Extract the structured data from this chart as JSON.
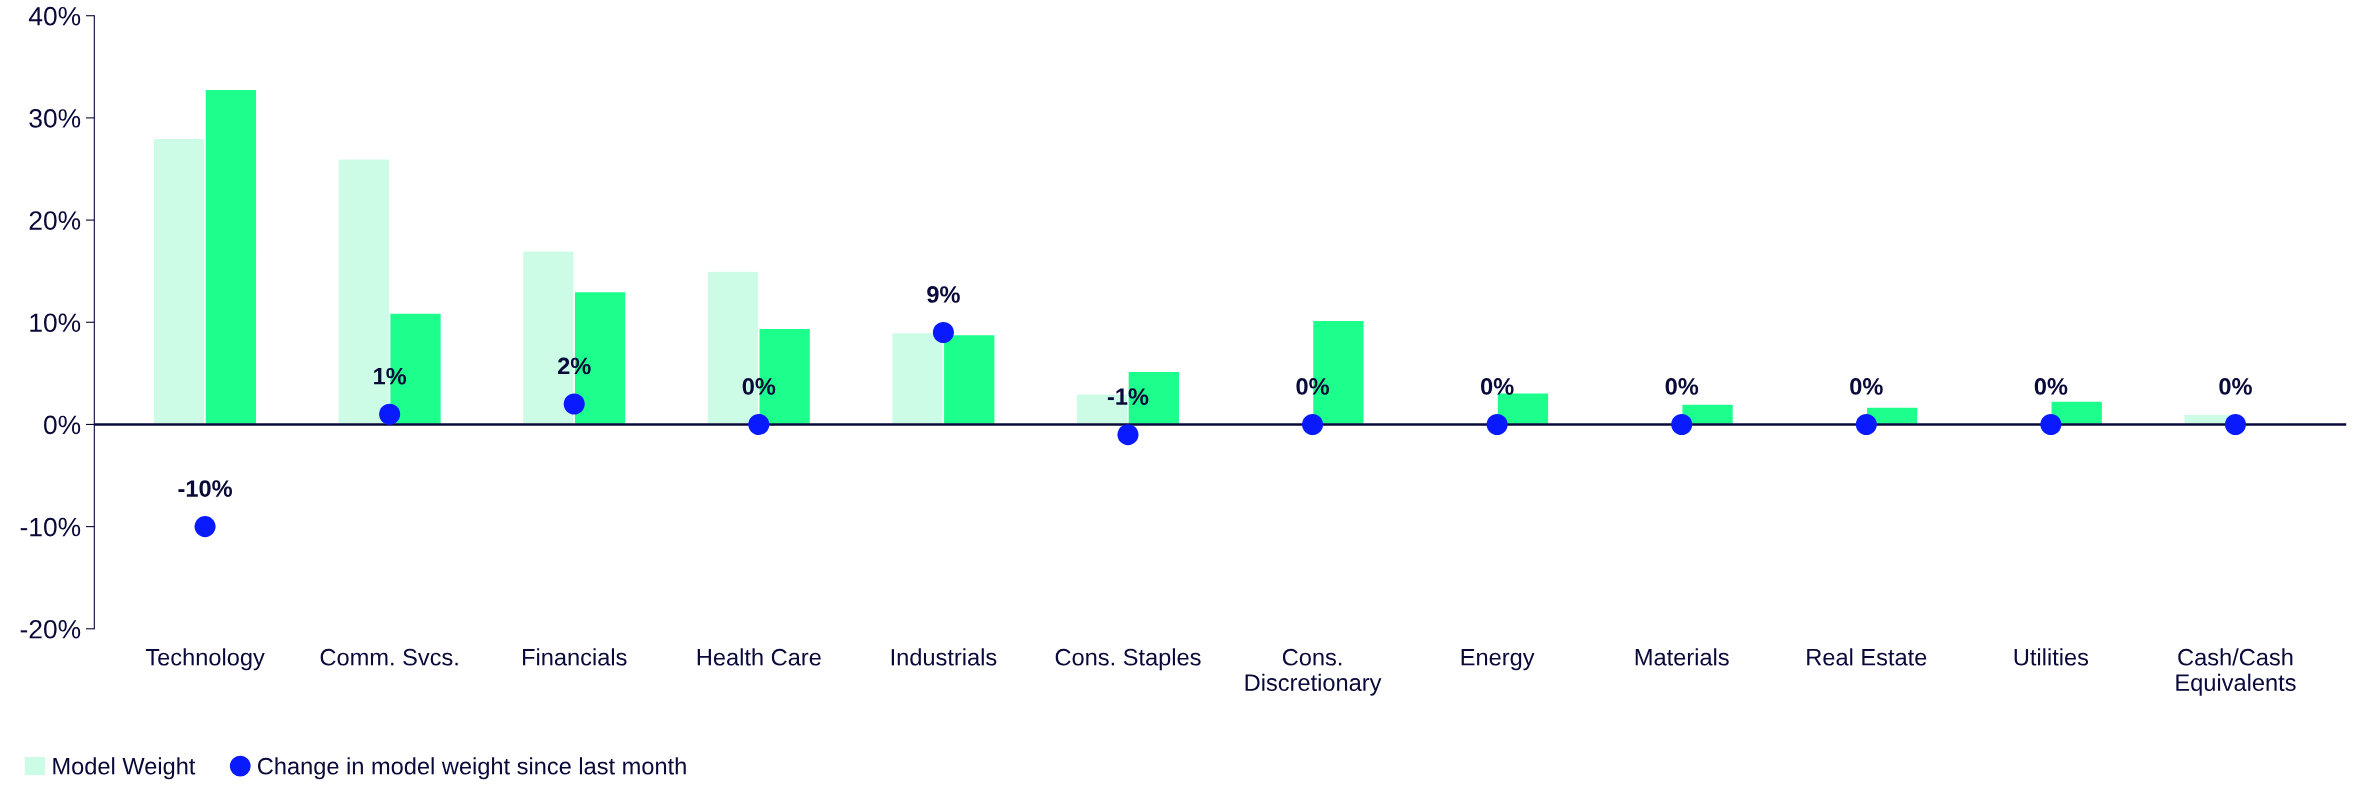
{
  "chart_data": {
    "type": "bar",
    "categories": [
      "Technology",
      "Comm. Svcs.",
      "Financials",
      "Health Care",
      "Industrials",
      "Cons. Staples",
      "Cons.\nDiscretionary",
      "Energy",
      "Materials",
      "Real Estate",
      "Utilities",
      "Cash/Cash\nEquivalents"
    ],
    "series": [
      {
        "name": "Model Weight",
        "color": "#ccfce6",
        "values": [
          28,
          26,
          17,
          15,
          9,
          3,
          null,
          null,
          null,
          null,
          null,
          1
        ]
      },
      {
        "color": "#1dff8c",
        "values": [
          32.8,
          10.9,
          13,
          9.4,
          8.8,
          5.2,
          10.2,
          3.1,
          2.0,
          1.7,
          2.3,
          null
        ]
      },
      {
        "name": "Change in model weight since last month",
        "type": "scatter",
        "color": "#0a1aff",
        "x": [
          "Technology",
          "Comm. Svcs.",
          "Financials",
          "Health Care",
          "Industrials",
          "Cons. Staples",
          "Cons.\nDiscretionary",
          "Energy",
          "Materials",
          "Real Estate",
          "Utilities",
          "Cash/Cash\nEquivalents"
        ],
        "values": [
          -10,
          1,
          2,
          0,
          9,
          -1,
          0,
          0,
          0,
          0,
          0,
          0
        ],
        "value_labels": [
          "-10%",
          "1%",
          "2%",
          "0%",
          "9%",
          "-1%",
          "0%",
          "0%",
          "0%",
          "0%",
          "0%",
          "0%"
        ]
      }
    ],
    "ylim": [
      -20,
      40
    ],
    "yticks": [
      {
        "value": -20,
        "label": "-20%"
      },
      {
        "value": -10,
        "label": "-10%"
      },
      {
        "value": 0,
        "label": "0%"
      },
      {
        "value": 10,
        "label": "10%"
      },
      {
        "value": 20,
        "label": "20%"
      },
      {
        "value": 30,
        "label": "30%"
      },
      {
        "value": 40,
        "label": "40%"
      }
    ],
    "grid": false,
    "legend": "bottom left",
    "marker": "circle"
  }
}
